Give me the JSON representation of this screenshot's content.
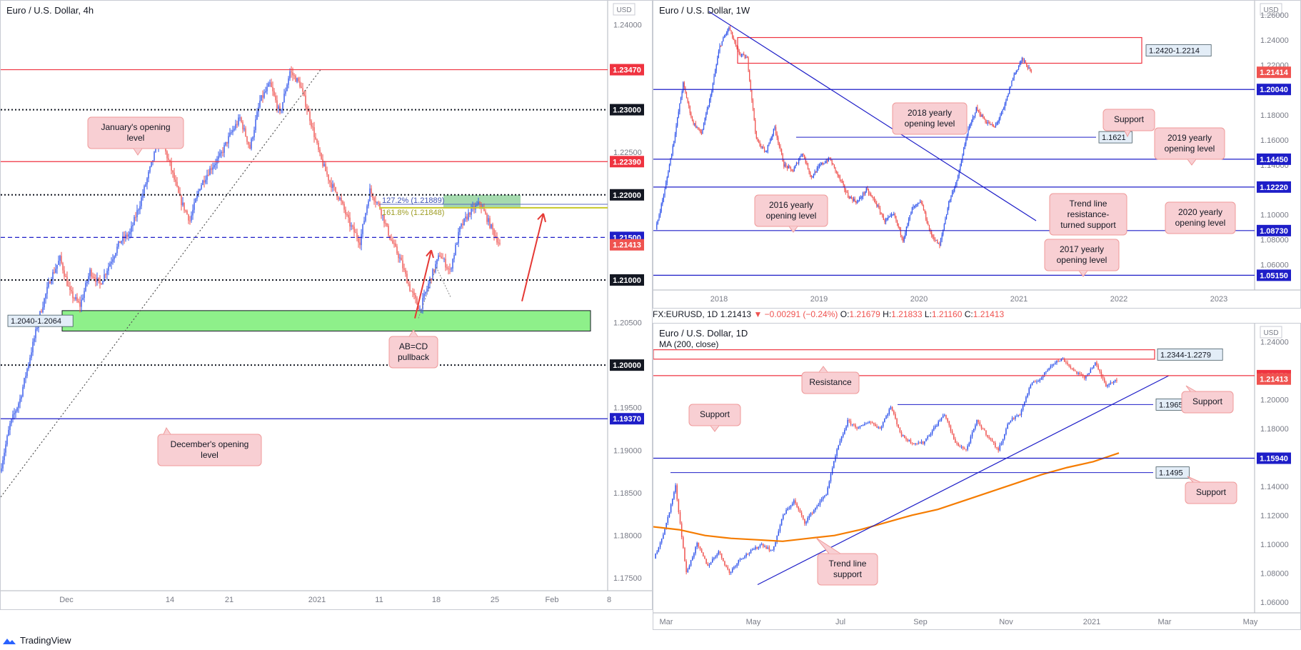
{
  "colors": {
    "bull": "#2f54eb",
    "bear": "#ef5350",
    "red_level": "#ef3340",
    "blue_level": "#1e1ec8",
    "black_level": "#131722",
    "note_bg": "#f8cfd3",
    "note_border": "#ef9a9a",
    "zone_green": "#8ef08a",
    "ma": "#f57c00",
    "label_neutral": "#e3edf7"
  },
  "info_bar": {
    "symbol": "FX:EURUSD, 1D",
    "close": "1.21413",
    "change": "▼ −0.00291 (−0.24%)",
    "o": "O:",
    "o_val": "1.21679",
    "h": "H:",
    "h_val": "1.21833",
    "l": "L:",
    "l_val": "1.21160",
    "c": "C:",
    "c_val": "1.21413"
  },
  "brand": "TradingView",
  "chart_data": [
    {
      "type": "candlestick",
      "name": "4h",
      "title": "Euro / U.S. Dollar, 4h",
      "currency": "USD",
      "ylim": [
        1.1735,
        1.2428
      ],
      "y_ticks": [
        1.24,
        1.235,
        1.23,
        1.225,
        1.22,
        1.215,
        1.21,
        1.205,
        1.2,
        1.195,
        1.19,
        1.185,
        1.18,
        1.175
      ],
      "y_tick_labels": [
        "1.24000",
        "1.23500",
        "1.23000",
        "1.22500",
        "1.22000",
        "1.21500",
        "1.21000",
        "1.20500",
        "1.20000",
        "1.19500",
        "1.19000",
        "1.18500",
        "1.18000",
        "1.17500"
      ],
      "x_tick_labels": [
        "Dec",
        "14",
        "21",
        "2021",
        "11",
        "18",
        "25",
        "Feb",
        "8"
      ],
      "levels": [
        {
          "y": 1.2347,
          "style": "solid",
          "color": "red",
          "label": "1.23470"
        },
        {
          "y": 1.23,
          "style": "dotted",
          "color": "black",
          "label": "1.23000"
        },
        {
          "y": 1.2239,
          "style": "solid",
          "color": "red",
          "label": "1.22390"
        },
        {
          "y": 1.22,
          "style": "dotted",
          "color": "black",
          "label": "1.22000"
        },
        {
          "y": 1.215,
          "style": "dashed",
          "color": "blue",
          "label": "1.21500"
        },
        {
          "y": 1.21,
          "style": "dotted",
          "color": "black",
          "label": "1.21000"
        },
        {
          "y": 1.2,
          "style": "dotted",
          "color": "black",
          "label": "1.20000"
        },
        {
          "y": 1.1937,
          "style": "solid",
          "color": "blue",
          "label": "1.19370"
        }
      ],
      "last_price": {
        "y": 1.21413,
        "label": "1.21413"
      },
      "zones": [
        {
          "label": "1.2040-1.2064",
          "y1": 1.2064,
          "y2": 1.204,
          "color": "green"
        }
      ],
      "fib_labels": [
        "127.2% (1.21889)",
        "161.8% (1.21848)"
      ],
      "annotations": [
        "January's opening level",
        "December's opening level",
        "AB=CD pullback"
      ],
      "close_path": [
        1.1875,
        1.193,
        1.196,
        1.201,
        1.206,
        1.21,
        1.2125,
        1.2085,
        1.207,
        1.211,
        1.2095,
        1.212,
        1.2145,
        1.2155,
        1.219,
        1.223,
        1.227,
        1.2235,
        1.2195,
        1.217,
        1.221,
        1.223,
        1.2245,
        1.227,
        1.229,
        1.2255,
        1.231,
        1.233,
        1.2295,
        1.2345,
        1.233,
        1.229,
        1.2245,
        1.2215,
        1.2195,
        1.2165,
        1.2145,
        1.2205,
        1.2185,
        1.215,
        1.2125,
        1.209,
        1.2065,
        1.21,
        1.213,
        1.211,
        1.216,
        1.218,
        1.219,
        1.2165,
        1.2141
      ]
    },
    {
      "type": "candlestick",
      "name": "1W",
      "title": "Euro / U.S. Dollar, 1W",
      "currency": "USD",
      "ylim": [
        1.0397,
        1.2715
      ],
      "y_ticks": [
        1.26,
        1.24,
        1.22,
        1.2,
        1.18,
        1.16,
        1.14,
        1.12,
        1.1,
        1.08,
        1.06
      ],
      "y_tick_labels": [
        "1.26000",
        "1.24000",
        "1.22000",
        "1.20000",
        "1.18000",
        "1.16000",
        "1.14000",
        "1.12000",
        "1.10000",
        "1.08000",
        "1.06000"
      ],
      "x_tick_labels": [
        "2018",
        "2019",
        "2020",
        "2021",
        "2022",
        "2023"
      ],
      "levels": [
        {
          "y": 1.2004,
          "label": "1.20040"
        },
        {
          "y": 1.1445,
          "label": "1.14450"
        },
        {
          "y": 1.1222,
          "label": "1.12220"
        },
        {
          "y": 1.0873,
          "label": "1.08730"
        },
        {
          "y": 1.0515,
          "label": "1.05150"
        },
        {
          "y": 1.1621,
          "label": "1.1621"
        }
      ],
      "last_price": {
        "y": 1.21414,
        "label": "1.21414"
      },
      "zones": [
        {
          "label": "1.2420-1.2214",
          "y1": 1.242,
          "y2": 1.2214
        }
      ],
      "annotations": [
        "2018 yearly opening level",
        "Support",
        "2019 yearly opening level",
        "Trend line resistance-turned support",
        "2016 yearly opening level",
        "2020 yearly opening level",
        "2017 yearly opening level"
      ],
      "close_path": [
        1.088,
        1.12,
        1.16,
        1.205,
        1.175,
        1.165,
        1.195,
        1.235,
        1.25,
        1.23,
        1.225,
        1.16,
        1.15,
        1.17,
        1.14,
        1.135,
        1.15,
        1.13,
        1.14,
        1.145,
        1.13,
        1.115,
        1.11,
        1.12,
        1.11,
        1.095,
        1.1,
        1.08,
        1.105,
        1.11,
        1.085,
        1.075,
        1.11,
        1.13,
        1.165,
        1.185,
        1.175,
        1.17,
        1.185,
        1.21,
        1.225,
        1.214
      ]
    },
    {
      "type": "candlestick",
      "name": "1D",
      "title": "Euro / U.S. Dollar, 1D",
      "subtitle": "MA (200, close)",
      "currency": "USD",
      "ylim": [
        1.0525,
        1.2525
      ],
      "y_ticks": [
        1.24,
        1.2,
        1.18,
        1.16,
        1.14,
        1.12,
        1.1,
        1.08,
        1.06
      ],
      "y_tick_labels": [
        "1.24000",
        "1.20000",
        "1.18000",
        "1.16000",
        "1.14000",
        "1.12000",
        "1.10000",
        "1.08000",
        "1.06000"
      ],
      "x_tick_labels": [
        "Mar",
        "May",
        "Jul",
        "Sep",
        "Nov",
        "2021",
        "Mar",
        "May"
      ],
      "levels": [
        {
          "y": 1.2165,
          "color": "red",
          "label": "1.21650"
        },
        {
          "y": 1.1965,
          "color": "blue",
          "label": "1.1965"
        },
        {
          "y": 1.1594,
          "color": "blue",
          "label": "1.15940"
        },
        {
          "y": 1.1495,
          "color": "blue",
          "label": "1.1495"
        }
      ],
      "last_price": {
        "y": 1.21413,
        "label": "1.21413"
      },
      "zones": [
        {
          "label": "1.2344-1.2279",
          "y1": 1.2344,
          "y2": 1.2279
        }
      ],
      "annotations": [
        "Resistance",
        "Support",
        "Support",
        "Support",
        "Trend line support"
      ],
      "close_path": [
        1.09,
        1.11,
        1.14,
        1.08,
        1.1,
        1.085,
        1.095,
        1.08,
        1.09,
        1.095,
        1.1,
        1.095,
        1.12,
        1.13,
        1.115,
        1.125,
        1.135,
        1.165,
        1.185,
        1.18,
        1.185,
        1.18,
        1.195,
        1.175,
        1.17,
        1.17,
        1.18,
        1.19,
        1.17,
        1.165,
        1.185,
        1.175,
        1.165,
        1.185,
        1.19,
        1.21,
        1.215,
        1.225,
        1.228,
        1.22,
        1.215,
        1.225,
        1.21,
        1.214
      ],
      "ma_path": [
        1.112,
        1.11,
        1.106,
        1.104,
        1.103,
        1.102,
        1.104,
        1.106,
        1.11,
        1.115,
        1.12,
        1.124,
        1.13,
        1.136,
        1.142,
        1.148,
        1.153,
        1.157,
        1.163
      ]
    }
  ]
}
